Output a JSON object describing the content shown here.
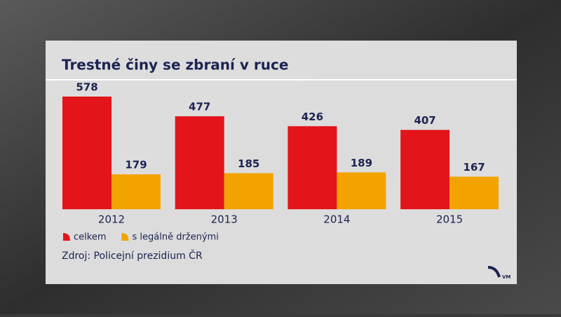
{
  "chart_data": {
    "type": "bar",
    "title": "Trestné činy se zbraní v ruce",
    "categories": [
      "2012",
      "2013",
      "2014",
      "2015"
    ],
    "series": [
      {
        "name": "celkem",
        "color": "#e3151a",
        "values": [
          578,
          477,
          426,
          407
        ]
      },
      {
        "name": "s legálně drženými",
        "color": "#f3a300",
        "values": [
          179,
          185,
          189,
          167
        ]
      }
    ],
    "source": "Zdroj: Policejní prezidium ČR"
  }
}
